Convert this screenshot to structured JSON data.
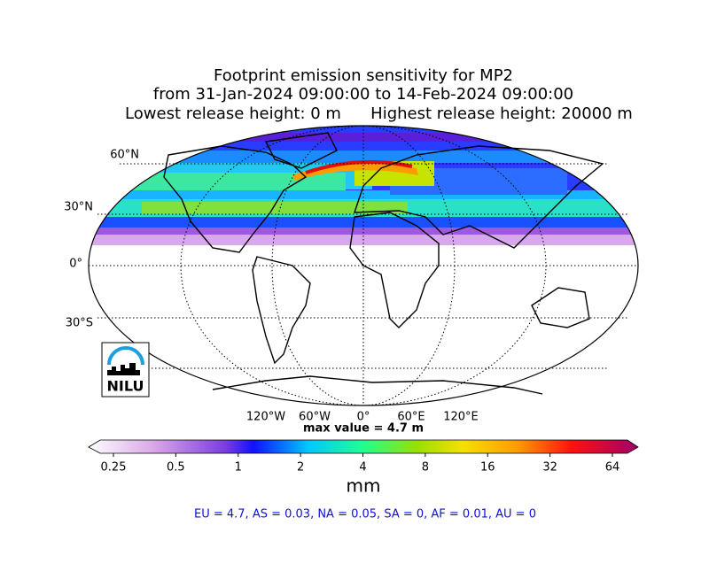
{
  "title": {
    "line1": "Footprint emission sensitivity for MP2",
    "line2": "from 31-Jan-2024 09:00:00 to 14-Feb-2024 09:00:00",
    "line3_left": "Lowest release height: 0 m",
    "line3_right": "Highest release height: 20000 m"
  },
  "map": {
    "lat_labels": [
      "60°N",
      "30°N",
      "0°",
      "30°S"
    ],
    "lon_labels": [
      "120°W",
      "60°W",
      "0°",
      "60°E",
      "120°E"
    ],
    "max_value": "max value = 4.7 m",
    "logo": "NILU"
  },
  "colorbar": {
    "ticks": [
      0.25,
      0.5,
      1,
      2,
      4,
      8,
      16,
      32,
      64
    ],
    "scale": "log",
    "label": "mm"
  },
  "stats": "EU = 4.7,  AS = 0.03,  NA = 0.05,  SA = 0,  AF = 0.01,  AU = 0"
}
